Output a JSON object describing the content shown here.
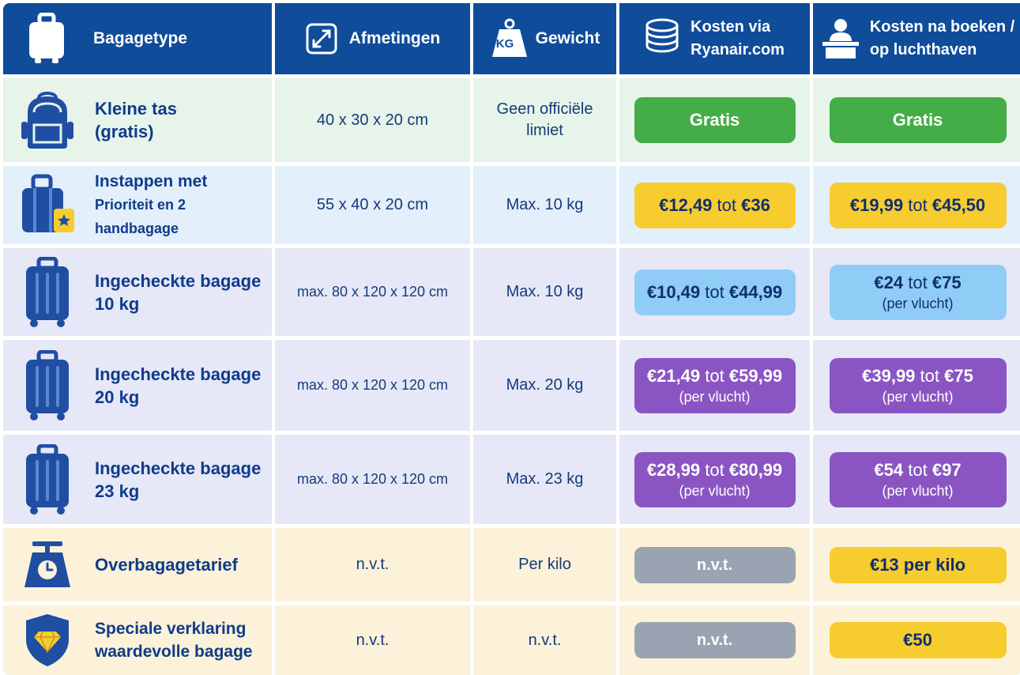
{
  "header": {
    "type": "Bagagetype",
    "dimensions": "Afmetingen",
    "weight": "Gewicht",
    "weight_badge": "KG",
    "online_line1": "Kosten via",
    "online_line2": "Ryanair.com",
    "airport_line1": "Kosten na boeken /",
    "airport_line2": "op luchthaven"
  },
  "rows": [
    {
      "label1": "Kleine tas",
      "label2": "(gratis)",
      "dimensions": "40 x 30 x 20 cm",
      "weight1": "Geen officiële",
      "weight2": "limiet",
      "online": {
        "text": "Gratis"
      },
      "airport": {
        "text": "Gratis"
      }
    },
    {
      "label1": "Instappen met",
      "label2": "Prioriteit en 2 handbagage",
      "dimensions": "55 x 40 x 20 cm",
      "weight": "Max. 10 kg",
      "online": {
        "from": "€12,49",
        "mid": "tot",
        "to": "€36"
      },
      "airport": {
        "from": "€19,99",
        "mid": "tot",
        "to": "€45,50"
      }
    },
    {
      "label1": "Ingecheckte bagage",
      "label2": "10 kg",
      "dimensions": "max. 80 x 120 x 120 cm",
      "weight": "Max. 10 kg",
      "online": {
        "from": "€10,49",
        "mid": "tot",
        "to": "€44,99"
      },
      "airport": {
        "from": "€24",
        "mid": "tot",
        "to": "€75",
        "note": "(per vlucht)"
      }
    },
    {
      "label1": "Ingecheckte bagage",
      "label2": "20 kg",
      "dimensions": "max. 80 x 120 x 120 cm",
      "weight": "Max. 20 kg",
      "online": {
        "from": "€21,49",
        "mid": "tot",
        "to": "€59,99",
        "note": "(per vlucht)"
      },
      "airport": {
        "from": "€39,99",
        "mid": "tot",
        "to": "€75",
        "note": "(per vlucht)"
      }
    },
    {
      "label1": "Ingecheckte bagage",
      "label2": "23 kg",
      "dimensions": "max. 80 x 120 x 120 cm",
      "weight": "Max. 23 kg",
      "online": {
        "from": "€28,99",
        "mid": "tot",
        "to": "€80,99",
        "note": "(per vlucht)"
      },
      "airport": {
        "from": "€54",
        "mid": "tot",
        "to": "€97",
        "note": "(per vlucht)"
      }
    },
    {
      "label1": "Overbagagetarief",
      "dimensions": "n.v.t.",
      "weight": "Per kilo",
      "online": {
        "text": "n.v.t."
      },
      "airport": {
        "text": "€13 per kilo"
      }
    },
    {
      "label1": "Speciale verklaring",
      "label2": "waardevolle bagage",
      "dimensions": "n.v.t.",
      "weight": "n.v.t.",
      "online": {
        "text": "n.v.t."
      },
      "airport": {
        "text": "€50"
      }
    }
  ],
  "colors": {
    "header": "#0f4c9a",
    "free": "#45ad48",
    "yellow": "#f7cc2f",
    "sky": "#8fcdf7",
    "purple": "#8a55c2",
    "grey": "#9aa3b1"
  }
}
